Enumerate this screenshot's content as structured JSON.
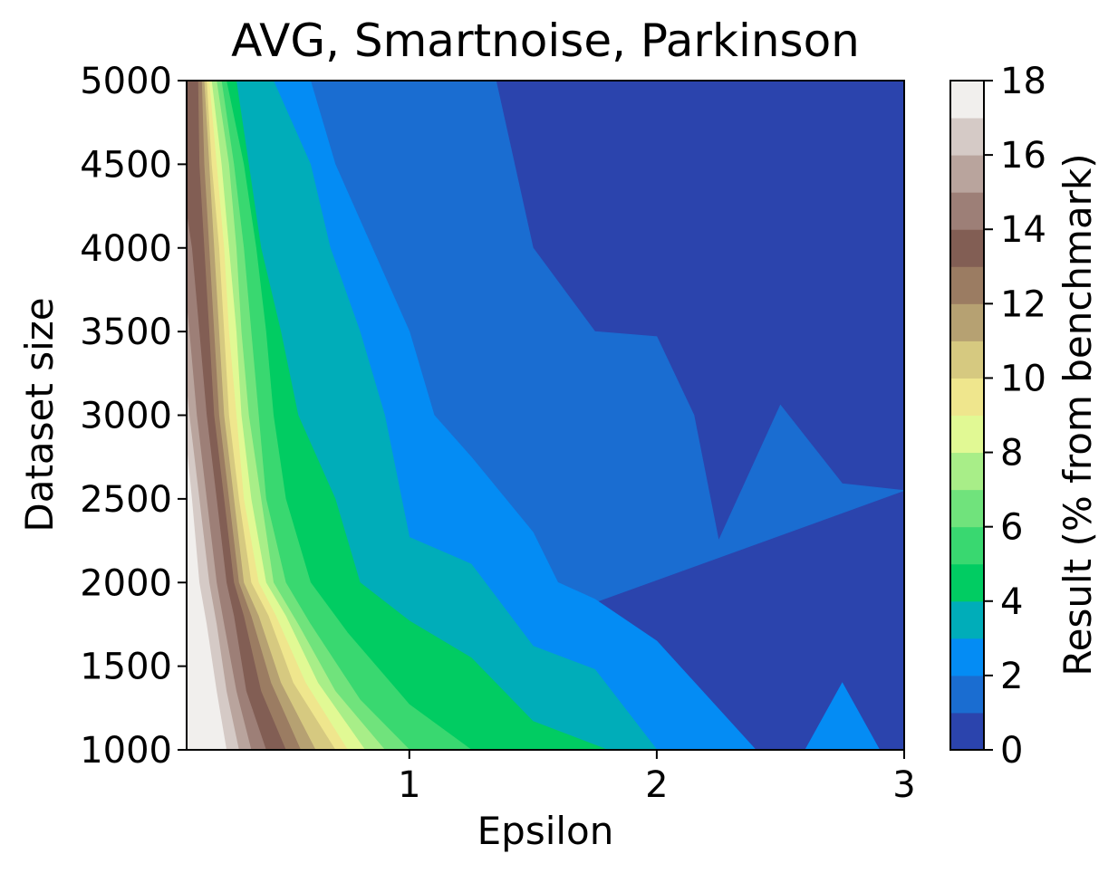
{
  "chart_data": {
    "type": "contour",
    "title": "AVG, Smartnoise, Parkinson",
    "xlabel": "Epsilon",
    "ylabel": "Dataset size",
    "colorbar_label": "Result (% from benchmark)",
    "xlim": [
      0.1,
      3
    ],
    "ylim": [
      1000,
      5000
    ],
    "xticks": [
      1,
      2,
      3
    ],
    "yticks": [
      1000,
      1500,
      2000,
      2500,
      3000,
      3500,
      4000,
      4500,
      5000
    ],
    "colorbar_ticks": [
      0,
      2,
      4,
      6,
      8,
      10,
      12,
      14,
      16,
      18
    ],
    "colorbar_levels": [
      0,
      1,
      2,
      3,
      4,
      5,
      6,
      7,
      8,
      9,
      10,
      11,
      12,
      13,
      14,
      15,
      16,
      17,
      18
    ],
    "colormap": "terrain",
    "level_colors": [
      "#2b44ad",
      "#1a6dd1",
      "#048cf4",
      "#00adb9",
      "#01cc62",
      "#39d870",
      "#70e37c",
      "#a8ee88",
      "#e1f994",
      "#efe68d",
      "#d6c980",
      "#b6a172",
      "#9b7c62",
      "#825e54",
      "#9d7f77",
      "#b9a49d",
      "#d5cac6",
      "#f1efed"
    ],
    "contour_levels": [
      {
        "level": 1,
        "points": [
          [
            3,
            2550
          ],
          [
            2.75,
            2590
          ],
          [
            2.5,
            3060
          ],
          [
            2.25,
            2250
          ],
          [
            2.15,
            3000
          ],
          [
            2.0,
            3470
          ],
          [
            1.75,
            3500
          ],
          [
            1.5,
            4000
          ],
          [
            1.35,
            5000
          ]
        ]
      },
      {
        "level": 2,
        "points": [
          [
            2.9,
            1000
          ],
          [
            2.75,
            1400
          ],
          [
            2.6,
            1000
          ],
          [
            2.4,
            1000
          ],
          [
            2.0,
            1650
          ],
          [
            1.75,
            1900
          ],
          [
            1.6,
            2000
          ],
          [
            1.5,
            2300
          ],
          [
            1.25,
            2750
          ],
          [
            1.1,
            3000
          ],
          [
            1.0,
            3500
          ],
          [
            0.85,
            4000
          ],
          [
            0.7,
            4500
          ],
          [
            0.6,
            5000
          ]
        ]
      },
      {
        "level": 3,
        "points": [
          [
            2.0,
            1000
          ],
          [
            1.75,
            1480
          ],
          [
            1.5,
            1620
          ],
          [
            1.25,
            2110
          ],
          [
            1.0,
            2270
          ],
          [
            0.9,
            3000
          ],
          [
            0.8,
            3500
          ],
          [
            0.68,
            4000
          ],
          [
            0.6,
            4500
          ],
          [
            0.45,
            5000
          ]
        ]
      },
      {
        "level": 4,
        "points": [
          [
            1.8,
            1000
          ],
          [
            1.5,
            1170
          ],
          [
            1.25,
            1550
          ],
          [
            1.0,
            1770
          ],
          [
            0.8,
            2000
          ],
          [
            0.7,
            2500
          ],
          [
            0.55,
            3000
          ],
          [
            0.48,
            3500
          ],
          [
            0.4,
            4000
          ],
          [
            0.35,
            4500
          ],
          [
            0.3,
            5000
          ]
        ]
      },
      {
        "level": 5,
        "points": [
          [
            1.25,
            1000
          ],
          [
            1.0,
            1270
          ],
          [
            0.75,
            1700
          ],
          [
            0.6,
            2000
          ],
          [
            0.5,
            2500
          ],
          [
            0.45,
            3000
          ],
          [
            0.42,
            3500
          ],
          [
            0.38,
            4000
          ],
          [
            0.33,
            4500
          ],
          [
            0.26,
            5000
          ]
        ]
      },
      {
        "level": 6,
        "points": [
          [
            1.0,
            1000
          ],
          [
            0.8,
            1300
          ],
          [
            0.6,
            1750
          ],
          [
            0.5,
            2000
          ],
          [
            0.42,
            2500
          ],
          [
            0.39,
            3000
          ],
          [
            0.36,
            3500
          ],
          [
            0.33,
            4000
          ],
          [
            0.29,
            4500
          ],
          [
            0.24,
            5000
          ]
        ]
      },
      {
        "level": 7,
        "points": [
          [
            0.9,
            1000
          ],
          [
            0.7,
            1350
          ],
          [
            0.55,
            1750
          ],
          [
            0.45,
            2000
          ],
          [
            0.4,
            2500
          ],
          [
            0.35,
            3000
          ],
          [
            0.32,
            3500
          ],
          [
            0.3,
            4000
          ],
          [
            0.27,
            4500
          ],
          [
            0.22,
            5000
          ]
        ]
      },
      {
        "level": 8,
        "points": [
          [
            0.82,
            1000
          ],
          [
            0.63,
            1400
          ],
          [
            0.5,
            1800
          ],
          [
            0.42,
            2000
          ],
          [
            0.36,
            2500
          ],
          [
            0.32,
            3000
          ],
          [
            0.3,
            3500
          ],
          [
            0.27,
            4000
          ],
          [
            0.24,
            4500
          ],
          [
            0.2,
            5000
          ]
        ]
      },
      {
        "level": 9,
        "points": [
          [
            0.75,
            1000
          ],
          [
            0.58,
            1400
          ],
          [
            0.46,
            1800
          ],
          [
            0.39,
            2000
          ],
          [
            0.33,
            2500
          ],
          [
            0.3,
            3000
          ],
          [
            0.27,
            3500
          ],
          [
            0.25,
            4000
          ],
          [
            0.22,
            4500
          ],
          [
            0.19,
            5000
          ]
        ]
      },
      {
        "level": 10,
        "points": [
          [
            0.7,
            1000
          ],
          [
            0.53,
            1400
          ],
          [
            0.43,
            1800
          ],
          [
            0.36,
            2000
          ],
          [
            0.31,
            2500
          ],
          [
            0.27,
            3000
          ],
          [
            0.25,
            3500
          ],
          [
            0.23,
            4000
          ],
          [
            0.2,
            4500
          ],
          [
            0.18,
            5000
          ]
        ]
      },
      {
        "level": 11,
        "points": [
          [
            0.62,
            1000
          ],
          [
            0.48,
            1400
          ],
          [
            0.39,
            1800
          ],
          [
            0.33,
            2000
          ],
          [
            0.29,
            2500
          ],
          [
            0.25,
            3000
          ],
          [
            0.23,
            3500
          ],
          [
            0.21,
            4000
          ],
          [
            0.19,
            4500
          ],
          [
            0.17,
            5000
          ]
        ]
      },
      {
        "level": 12,
        "points": [
          [
            0.56,
            1000
          ],
          [
            0.44,
            1400
          ],
          [
            0.36,
            1800
          ],
          [
            0.31,
            2000
          ],
          [
            0.27,
            2500
          ],
          [
            0.23,
            3000
          ],
          [
            0.21,
            3500
          ],
          [
            0.19,
            4000
          ],
          [
            0.17,
            4500
          ],
          [
            0.16,
            5000
          ]
        ]
      },
      {
        "level": 13,
        "points": [
          [
            0.5,
            1000
          ],
          [
            0.4,
            1350
          ],
          [
            0.33,
            1800
          ],
          [
            0.29,
            2000
          ],
          [
            0.25,
            2500
          ],
          [
            0.21,
            3000
          ],
          [
            0.19,
            3500
          ],
          [
            0.17,
            4000
          ],
          [
            0.15,
            4500
          ],
          [
            0.145,
            5000
          ]
        ]
      },
      {
        "level": 14,
        "points": [
          [
            0.42,
            1000
          ],
          [
            0.34,
            1350
          ],
          [
            0.29,
            1800
          ],
          [
            0.26,
            2000
          ],
          [
            0.22,
            2500
          ],
          [
            0.18,
            3000
          ],
          [
            0.15,
            3500
          ],
          [
            0.12,
            4000
          ],
          [
            0.1,
            4200
          ]
        ]
      },
      {
        "level": 15,
        "points": [
          [
            0.36,
            1000
          ],
          [
            0.3,
            1350
          ],
          [
            0.25,
            1750
          ],
          [
            0.22,
            2000
          ],
          [
            0.18,
            2500
          ],
          [
            0.14,
            3000
          ],
          [
            0.11,
            3500
          ],
          [
            0.1,
            3650
          ]
        ]
      },
      {
        "level": 16,
        "points": [
          [
            0.31,
            1000
          ],
          [
            0.26,
            1350
          ],
          [
            0.22,
            1750
          ],
          [
            0.19,
            2000
          ],
          [
            0.15,
            2500
          ],
          [
            0.11,
            3000
          ],
          [
            0.1,
            3150
          ]
        ]
      },
      {
        "level": 17,
        "points": [
          [
            0.26,
            1000
          ],
          [
            0.22,
            1350
          ],
          [
            0.18,
            1750
          ],
          [
            0.15,
            2000
          ],
          [
            0.12,
            2500
          ],
          [
            0.1,
            2800
          ]
        ]
      }
    ]
  }
}
